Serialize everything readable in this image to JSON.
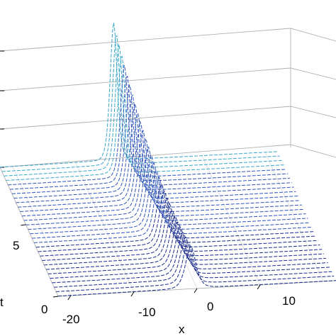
{
  "chart_data": {
    "type": "line",
    "title": "",
    "xlabel": "x",
    "ylabel": "t",
    "zlabel": "",
    "x_ticks": [
      "-20",
      "-10",
      "0",
      "10"
    ],
    "t_ticks": [
      "0",
      "5"
    ],
    "x_range": [
      -22,
      22
    ],
    "t_range": [
      0,
      9
    ],
    "grid": true,
    "series_count": 30,
    "description_values": {
      "peak_time_of_max": 9,
      "peak_x_at_t0": -1,
      "peak_x_at_tmax": -4
    },
    "colormap": [
      "#1a2a8c",
      "#2f55b8",
      "#3aa6c8",
      "#3fe0b0"
    ]
  }
}
